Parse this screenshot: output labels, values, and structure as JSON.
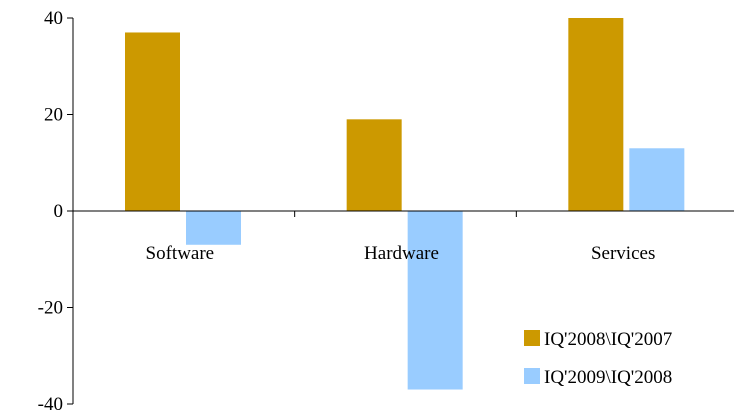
{
  "chart_data": {
    "type": "bar",
    "categories": [
      "Software",
      "Hardware",
      "Services"
    ],
    "series": [
      {
        "name": "IQ'2008\\IQ'2007",
        "values": [
          37,
          19,
          40
        ],
        "color": "#cc9900"
      },
      {
        "name": "IQ'2009\\IQ'2008",
        "values": [
          -7,
          -37,
          13
        ],
        "color": "#99ccff"
      }
    ],
    "ylim": [
      -40,
      40
    ],
    "yticks": [
      40,
      20,
      0,
      -20,
      -40
    ],
    "grid": false,
    "legend_position": "bottom-right"
  }
}
